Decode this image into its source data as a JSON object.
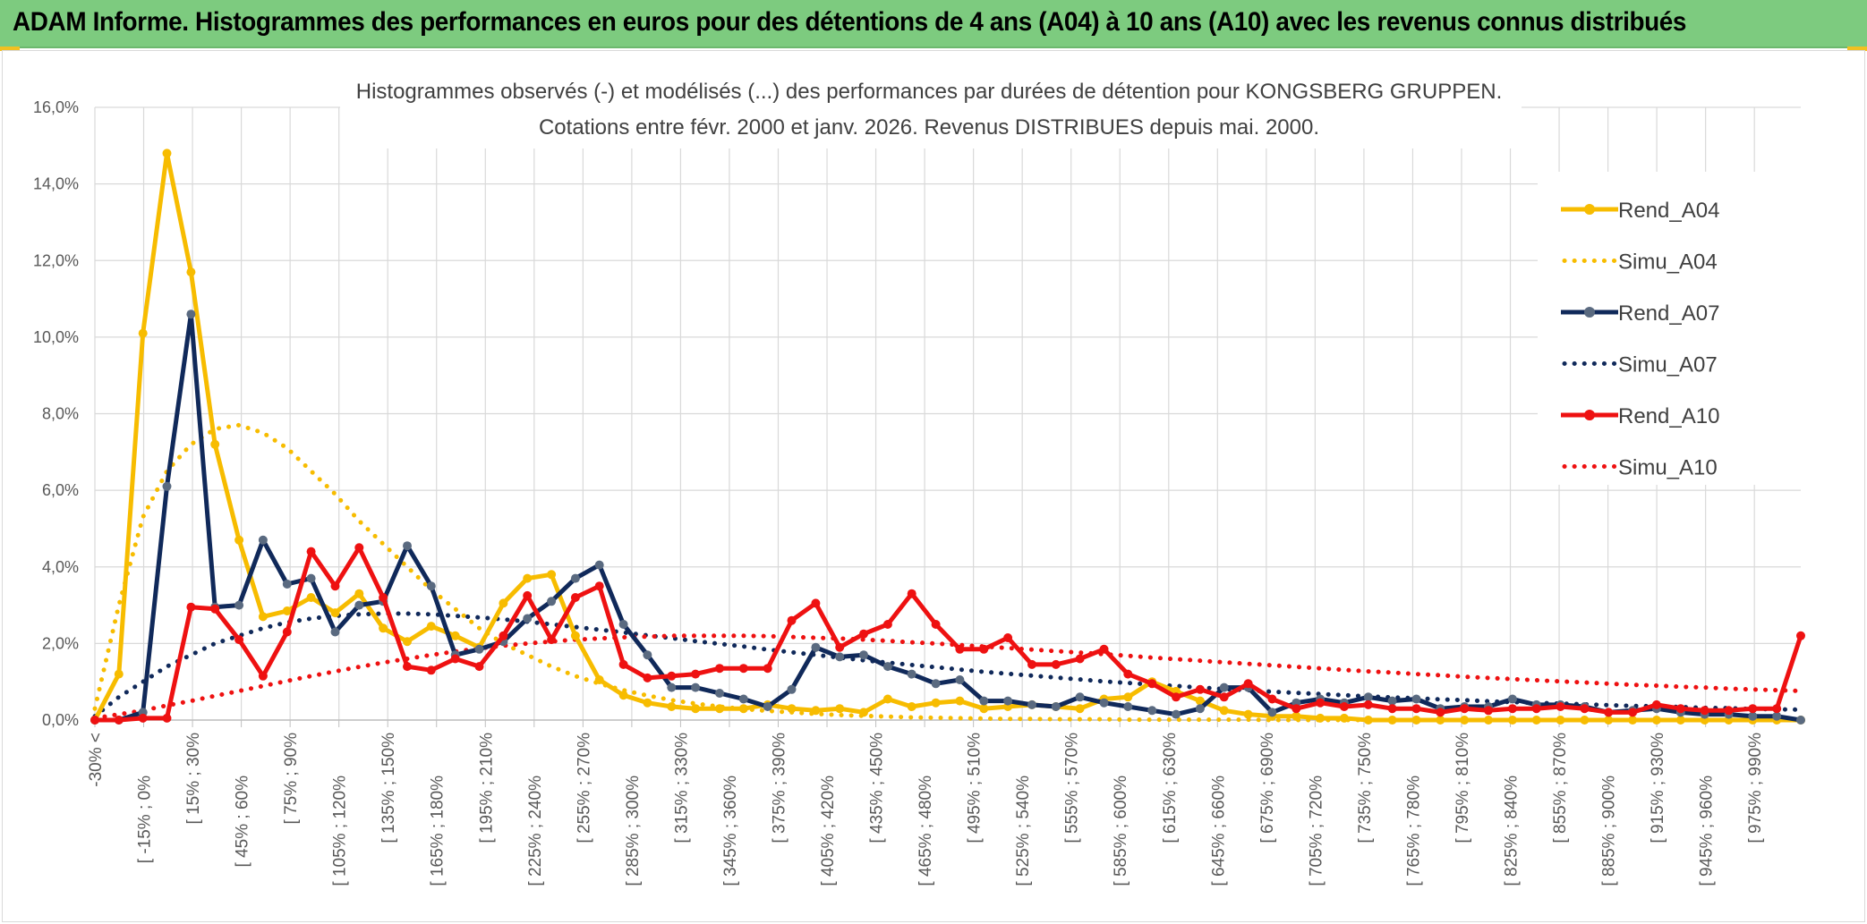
{
  "banner": {
    "title": "ADAM Informe. Histogrammes des performances en euros pour des détentions de 4 ans (A04) à 10 ans (A10) avec les revenus connus distribués"
  },
  "colors": {
    "banner_bg": "#7dcb7f",
    "A04": "#f7bc00",
    "A07": "#10295a",
    "A10": "#ee1111"
  },
  "chart_data": {
    "type": "line",
    "title": "Histogrammes observés (-) et modélisés (...) des performances par durées de détention pour KONGSBERG GRUPPEN.",
    "subtitle": "Cotations entre févr. 2000 et janv. 2026. Revenus DISTRIBUES depuis mai. 2000.",
    "xlabel": "",
    "ylabel": "",
    "ylim": [
      0,
      16
    ],
    "y_ticks": [
      "0,0%",
      "2,0%",
      "4,0%",
      "6,0%",
      "8,0%",
      "10,0%",
      "12,0%",
      "14,0%",
      "16,0%"
    ],
    "grid": true,
    "legend": "right",
    "x_tick_labels": [
      "-30% <",
      "[ -15% ; 0%",
      "[ 15% ; 30%",
      "[ 45% ; 60%",
      "[ 75% ; 90%",
      "[ 105% ; 120%",
      "[ 135% ; 150%",
      "[ 165% ; 180%",
      "[ 195% ; 210%",
      "[ 225% ; 240%",
      "[ 255% ; 270%",
      "[ 285% ; 300%",
      "[ 315% ; 330%",
      "[ 345% ; 360%",
      "[ 375% ; 390%",
      "[ 405% ; 420%",
      "[ 435% ; 450%",
      "[ 465% ; 480%",
      "[ 495% ; 510%",
      "[ 525% ; 540%",
      "[ 555% ; 570%",
      "[ 585% ; 600%",
      "[ 615% ; 630%",
      "[ 645% ; 660%",
      "[ 675% ; 690%",
      "[ 705% ; 720%",
      "[ 735% ; 750%",
      "[ 765% ; 780%",
      "[ 795% ; 810%",
      "[ 825% ; 840%",
      "[ 855% ; 870%",
      "[ 885% ; 900%",
      "[ 915% ; 930%",
      "[ 945% ; 960%",
      "[ 975% ; 990%"
    ],
    "series": [
      {
        "name": "Rend_A04",
        "style": "solid",
        "color": "#f7bc00",
        "values": [
          0.0,
          1.2,
          10.1,
          14.8,
          11.7,
          7.2,
          4.7,
          2.7,
          2.85,
          3.2,
          2.8,
          3.3,
          2.4,
          2.05,
          2.45,
          2.2,
          1.9,
          3.05,
          3.7,
          3.8,
          2.2,
          1.05,
          0.65,
          0.45,
          0.35,
          0.3,
          0.3,
          0.3,
          0.4,
          0.3,
          0.25,
          0.3,
          0.2,
          0.55,
          0.35,
          0.45,
          0.5,
          0.3,
          0.35,
          0.4,
          0.35,
          0.3,
          0.55,
          0.6,
          1.0,
          0.75,
          0.5,
          0.25,
          0.15,
          0.1,
          0.1,
          0.05,
          0.05,
          0.0,
          0.0,
          0.0,
          0.0,
          0.0,
          0.0,
          0.0,
          0.0,
          0.0,
          0.0,
          0.0,
          0.0,
          0.0,
          0.0,
          0.0,
          0.0,
          0.0,
          0.0,
          0.0
        ]
      },
      {
        "name": "Simu_A04",
        "style": "dotted",
        "color": "#f7bc00",
        "values": [
          0.3,
          3.0,
          5.3,
          6.5,
          7.2,
          7.6,
          7.7,
          7.5,
          7.1,
          6.5,
          5.9,
          5.2,
          4.6,
          4.0,
          3.4,
          2.9,
          2.4,
          2.0,
          1.7,
          1.4,
          1.15,
          0.95,
          0.78,
          0.64,
          0.52,
          0.43,
          0.35,
          0.29,
          0.24,
          0.2,
          0.16,
          0.13,
          0.11,
          0.09,
          0.07,
          0.06,
          0.05,
          0.04,
          0.03,
          0.03,
          0.02,
          0.02,
          0.02,
          0.01,
          0.01,
          0.01,
          0.01,
          0.01,
          0.01,
          0.0,
          0.0,
          0.0,
          0.0,
          0.0,
          0.0,
          0.0,
          0.0,
          0.0,
          0.0,
          0.0,
          0.0,
          0.0,
          0.0,
          0.0,
          0.0,
          0.0,
          0.0,
          0.0,
          0.0,
          0.0,
          0.0,
          0.0
        ]
      },
      {
        "name": "Rend_A07",
        "style": "solid",
        "color": "#10295a",
        "values": [
          0.0,
          0.0,
          0.2,
          6.1,
          10.6,
          2.95,
          3.0,
          4.7,
          3.55,
          3.7,
          2.3,
          3.0,
          3.1,
          4.55,
          3.5,
          1.7,
          1.85,
          2.05,
          2.65,
          3.1,
          3.7,
          4.05,
          2.5,
          1.7,
          0.85,
          0.85,
          0.7,
          0.55,
          0.35,
          0.8,
          1.9,
          1.65,
          1.7,
          1.4,
          1.2,
          0.95,
          1.05,
          0.5,
          0.5,
          0.4,
          0.35,
          0.6,
          0.45,
          0.35,
          0.25,
          0.15,
          0.3,
          0.85,
          0.85,
          0.2,
          0.45,
          0.55,
          0.45,
          0.6,
          0.5,
          0.55,
          0.3,
          0.35,
          0.35,
          0.55,
          0.4,
          0.4,
          0.35,
          0.2,
          0.25,
          0.3,
          0.2,
          0.15,
          0.15,
          0.1,
          0.1,
          0.0
        ]
      },
      {
        "name": "Simu_A07",
        "style": "dotted",
        "color": "#10295a",
        "values": [
          0.1,
          0.6,
          1.0,
          1.4,
          1.7,
          2.0,
          2.2,
          2.4,
          2.55,
          2.65,
          2.72,
          2.76,
          2.78,
          2.78,
          2.76,
          2.72,
          2.68,
          2.63,
          2.57,
          2.5,
          2.43,
          2.36,
          2.29,
          2.21,
          2.14,
          2.06,
          1.99,
          1.92,
          1.84,
          1.77,
          1.7,
          1.63,
          1.56,
          1.5,
          1.44,
          1.38,
          1.32,
          1.26,
          1.21,
          1.16,
          1.11,
          1.06,
          1.01,
          0.97,
          0.93,
          0.89,
          0.85,
          0.81,
          0.78,
          0.74,
          0.71,
          0.68,
          0.65,
          0.62,
          0.59,
          0.57,
          0.54,
          0.52,
          0.49,
          0.47,
          0.45,
          0.43,
          0.41,
          0.39,
          0.37,
          0.36,
          0.34,
          0.32,
          0.31,
          0.29,
          0.28,
          0.27
        ]
      },
      {
        "name": "Rend_A10",
        "style": "solid",
        "color": "#ee1111",
        "values": [
          0.0,
          0.0,
          0.05,
          0.05,
          2.95,
          2.9,
          2.1,
          1.15,
          2.3,
          4.4,
          3.5,
          4.5,
          3.2,
          1.4,
          1.3,
          1.6,
          1.4,
          2.2,
          3.25,
          2.1,
          3.2,
          3.5,
          1.45,
          1.1,
          1.15,
          1.2,
          1.35,
          1.35,
          1.35,
          2.6,
          3.05,
          1.9,
          2.25,
          2.5,
          3.3,
          2.5,
          1.85,
          1.85,
          2.15,
          1.45,
          1.45,
          1.6,
          1.85,
          1.2,
          0.95,
          0.6,
          0.8,
          0.6,
          0.95,
          0.55,
          0.3,
          0.45,
          0.35,
          0.4,
          0.3,
          0.3,
          0.2,
          0.3,
          0.25,
          0.3,
          0.3,
          0.35,
          0.3,
          0.2,
          0.2,
          0.4,
          0.3,
          0.25,
          0.25,
          0.3,
          0.3,
          2.2
        ]
      },
      {
        "name": "Simu_A10",
        "style": "dotted",
        "color": "#ee1111",
        "values": [
          0.05,
          0.15,
          0.25,
          0.38,
          0.5,
          0.63,
          0.76,
          0.89,
          1.02,
          1.15,
          1.27,
          1.39,
          1.5,
          1.6,
          1.7,
          1.79,
          1.87,
          1.94,
          2.0,
          2.05,
          2.1,
          2.13,
          2.16,
          2.18,
          2.2,
          2.2,
          2.2,
          2.2,
          2.19,
          2.17,
          2.15,
          2.13,
          2.1,
          2.07,
          2.03,
          2.0,
          1.96,
          1.92,
          1.88,
          1.84,
          1.8,
          1.76,
          1.72,
          1.68,
          1.63,
          1.59,
          1.55,
          1.51,
          1.47,
          1.43,
          1.39,
          1.35,
          1.31,
          1.27,
          1.24,
          1.2,
          1.17,
          1.13,
          1.1,
          1.07,
          1.04,
          1.01,
          0.98,
          0.95,
          0.92,
          0.9,
          0.87,
          0.85,
          0.82,
          0.8,
          0.78,
          0.76
        ]
      }
    ]
  }
}
